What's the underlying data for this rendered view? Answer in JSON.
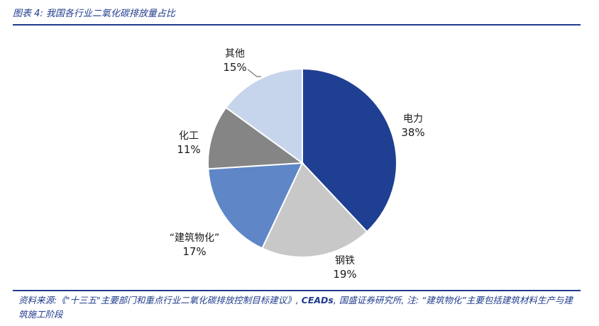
{
  "figure": {
    "title": "图表 4: 我国各行业二氧化碳排放量占比"
  },
  "chart_data": {
    "type": "pie",
    "start_angle_deg": 0,
    "direction": "clockwise",
    "slices": [
      {
        "label": "电力",
        "value": 38,
        "value_label": "38%",
        "color": "#1f3f93"
      },
      {
        "label": "钢铁",
        "value": 19,
        "value_label": "19%",
        "color": "#c8c8c8"
      },
      {
        "label": "“建筑物化”",
        "value": 17,
        "value_label": "17%",
        "color": "#5f86c6"
      },
      {
        "label": "化工",
        "value": 11,
        "value_label": "11%",
        "color": "#858585"
      },
      {
        "label": "其他",
        "value": 15,
        "value_label": "15%",
        "color": "#c7d5ec"
      }
    ],
    "legend": "none",
    "data_labels": "outside"
  },
  "footnote": {
    "prefix": "资料来源:《\"十三五\"主要部门和重点行业二氧化碳排放控制目标建议》, ",
    "source": "CEADs",
    "suffix": ", 国盛证券研究所, 注: “建筑物化”主要包括建筑材料生产与建筑施工阶段"
  },
  "colors": {
    "accent": "#1f3b8c",
    "label_text": "#1a1a1a"
  }
}
